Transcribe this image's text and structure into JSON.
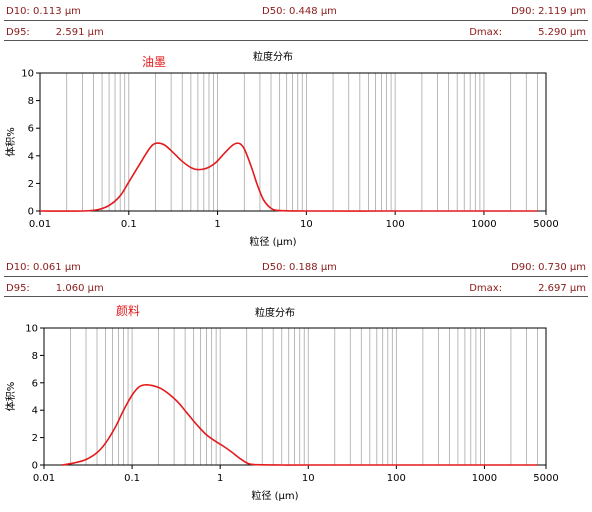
{
  "panels": [
    {
      "stats": {
        "d10_label": "D10:",
        "d10_value": "0.113",
        "d10_unit": "µm",
        "d50_label": "D50:",
        "d50_value": "0.448",
        "d50_unit": "µm",
        "d90_label": "D90:",
        "d90_value": "2.119",
        "d90_unit": "µm",
        "d95_label": "D95:",
        "d95_value": "2.591",
        "d95_unit": "µm",
        "dmax_label": "Dmax:",
        "dmax_value": "5.290",
        "dmax_unit": "µm"
      }
    },
    {
      "stats": {
        "d10_label": "D10:",
        "d10_value": "0.061",
        "d10_unit": "µm",
        "d50_label": "D50:",
        "d50_value": "0.188",
        "d50_unit": "µm",
        "d90_label": "D90:",
        "d90_value": "0.730",
        "d90_unit": "µm",
        "d95_label": "D95:",
        "d95_value": "1.060",
        "d95_unit": "µm",
        "dmax_label": "Dmax:",
        "dmax_value": "2.697",
        "dmax_unit": "µm"
      }
    }
  ],
  "chart_data": [
    {
      "type": "line",
      "title": "粒度分布",
      "annotation": "油墨",
      "xlabel": "粒径 (µm)",
      "ylabel": "体积%",
      "xscale": "log",
      "xlim": [
        0.01,
        5000
      ],
      "ylim": [
        0,
        10
      ],
      "x_ticks": [
        "0.01",
        "0.1",
        "1",
        "10",
        "100",
        "1000",
        "5000"
      ],
      "x_tick_values": [
        0.01,
        0.1,
        1,
        10,
        100,
        1000,
        5000
      ],
      "y_ticks": [
        "0",
        "2",
        "4",
        "6",
        "8",
        "10"
      ],
      "y_tick_values": [
        0,
        2,
        4,
        6,
        8,
        10
      ],
      "grid": true,
      "series_color": "#e41a1c",
      "x": [
        0.01,
        0.03,
        0.045,
        0.06,
        0.08,
        0.1,
        0.13,
        0.17,
        0.2,
        0.25,
        0.32,
        0.4,
        0.5,
        0.6,
        0.75,
        0.95,
        1.2,
        1.5,
        1.75,
        2.0,
        2.4,
        2.8,
        3.3,
        4.0,
        5.0,
        10,
        100,
        1000,
        4000
      ],
      "y": [
        0,
        0.0,
        0.1,
        0.4,
        1.1,
        2.1,
        3.3,
        4.5,
        4.9,
        4.8,
        4.2,
        3.6,
        3.15,
        3.0,
        3.1,
        3.5,
        4.2,
        4.8,
        4.9,
        4.5,
        3.2,
        1.9,
        0.8,
        0.2,
        0.03,
        0,
        0,
        0,
        0
      ]
    },
    {
      "type": "line",
      "title": "粒度分布",
      "annotation": "颜料",
      "xlabel": "粒径 (µm)",
      "ylabel": "体积%",
      "xscale": "log",
      "xlim": [
        0.01,
        5000
      ],
      "ylim": [
        0,
        10
      ],
      "x_ticks": [
        "0.01",
        "0.1",
        "1",
        "10",
        "100",
        "1000",
        "5000"
      ],
      "x_tick_values": [
        0.01,
        0.1,
        1,
        10,
        100,
        1000,
        5000
      ],
      "y_ticks": [
        "0",
        "2",
        "4",
        "6",
        "8",
        "10"
      ],
      "y_tick_values": [
        0,
        2,
        4,
        6,
        8,
        10
      ],
      "grid": true,
      "series_color": "#e41a1c",
      "x": [
        0.016,
        0.022,
        0.03,
        0.04,
        0.05,
        0.065,
        0.08,
        0.1,
        0.12,
        0.14,
        0.17,
        0.21,
        0.26,
        0.33,
        0.42,
        0.55,
        0.7,
        0.9,
        1.1,
        1.35,
        1.7,
        2.1,
        2.7,
        5,
        10,
        100,
        1000,
        4000
      ],
      "y": [
        0,
        0.15,
        0.4,
        0.9,
        1.6,
        2.8,
        4.0,
        5.1,
        5.7,
        5.85,
        5.8,
        5.6,
        5.2,
        4.6,
        3.8,
        2.9,
        2.2,
        1.7,
        1.35,
        0.95,
        0.45,
        0.1,
        0.02,
        0,
        0,
        0,
        0,
        0
      ]
    }
  ]
}
